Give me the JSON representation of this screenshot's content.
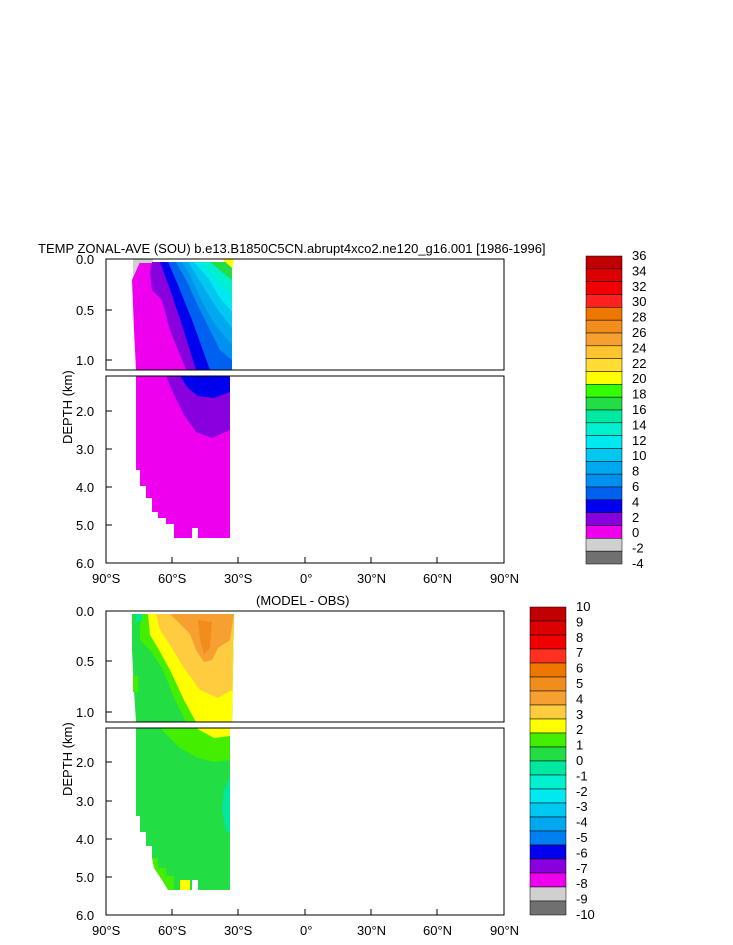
{
  "chart_data": [
    {
      "type": "contour",
      "title": "TEMP ZONAL-AVE (SOU) b.e13.B1850C5CN.abrupt4xco2.ne120_g16.001 [1986-1996]",
      "ylabel": "DEPTH (km)",
      "x_ticks": [
        "90°S",
        "60°S",
        "30°S",
        "0°",
        "30°N",
        "60°N",
        "90°N"
      ],
      "x_range": [
        -90,
        90
      ],
      "y_ticks_upper": [
        "0.0",
        "0.5",
        "1.0"
      ],
      "y_ticks_lower": [
        "2.0",
        "3.0",
        "4.0",
        "5.0",
        "6.0"
      ],
      "y_range_km": [
        0,
        6
      ],
      "colorbar_levels": [
        "36",
        "34",
        "32",
        "30",
        "28",
        "26",
        "24",
        "22",
        "20",
        "18",
        "16",
        "14",
        "12",
        "10",
        "8",
        "6",
        "4",
        "2",
        "0",
        "-2",
        "-4"
      ],
      "colorbar_colors": [
        "#c00000",
        "#dd0000",
        "#f00000",
        "#ff2020",
        "#ee7700",
        "#f18d1c",
        "#f5a030",
        "#ffc530",
        "#ffdd33",
        "#ffff00",
        "#33ff00",
        "#22dd44",
        "#00e8a0",
        "#00f0d0",
        "#00e8f0",
        "#00c8f0",
        "#00a8f0",
        "#0090f0",
        "#0060f0",
        "#0000ee",
        "#8800dd",
        "#ee00ee",
        "#d0d0d0",
        "#707070"
      ],
      "data_extent_lat": [
        -78,
        -33
      ],
      "notes_visible": []
    },
    {
      "type": "contour",
      "subtitle": "(MODEL - OBS)",
      "ylabel": "DEPTH (km)",
      "x_ticks": [
        "90°S",
        "60°S",
        "30°S",
        "0°",
        "30°N",
        "60°N",
        "90°N"
      ],
      "x_range": [
        -90,
        90
      ],
      "y_ticks_upper": [
        "0.0",
        "0.5",
        "1.0"
      ],
      "y_ticks_lower": [
        "2.0",
        "3.0",
        "4.0",
        "5.0",
        "6.0"
      ],
      "y_range_km": [
        0,
        6
      ],
      "colorbar_levels": [
        "10",
        "9",
        "8",
        "7",
        "6",
        "5",
        "4",
        "3",
        "2",
        "1",
        "0",
        "-1",
        "-2",
        "-3",
        "-4",
        "-5",
        "-6",
        "-7",
        "-8",
        "-9",
        "-10"
      ],
      "colorbar_colors": [
        "#c00000",
        "#dd0000",
        "#f00000",
        "#ff3020",
        "#ee7700",
        "#f18d1c",
        "#f5a030",
        "#ffcc40",
        "#ffff00",
        "#44ee00",
        "#22dd44",
        "#00e8a0",
        "#00f0d0",
        "#00e8f0",
        "#00c8f0",
        "#00a8f0",
        "#0080f0",
        "#0000ee",
        "#8800dd",
        "#ee00ee",
        "#d0d0d0",
        "#707070"
      ],
      "data_extent_lat": [
        -78,
        -33
      ]
    }
  ]
}
